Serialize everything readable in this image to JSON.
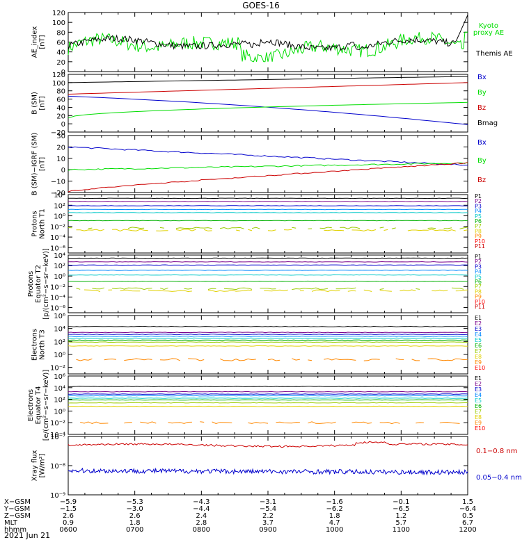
{
  "title": "GOES-16",
  "date": "2021 Jun 21",
  "colors": {
    "black": "#000000",
    "green": "#00dd00",
    "blue": "#0000cc",
    "red": "#cc0000",
    "p_colors": [
      "#000000",
      "#7a008a",
      "#0000cc",
      "#0088ff",
      "#00c8c8",
      "#00b000",
      "#9acc00",
      "#e0d000",
      "#ff8800",
      "#ff0000",
      "#cc0000"
    ],
    "e_colors": [
      "#000000",
      "#7a008a",
      "#0000cc",
      "#0088ff",
      "#00c8c8",
      "#00b000",
      "#9acc00",
      "#e0d000",
      "#ff8800",
      "#ff0000",
      "#cc0000"
    ]
  },
  "chart_data": [
    {
      "type": "line",
      "panel": "ae",
      "ylabel": "AE_index\n[nT]",
      "ylim": [
        0,
        120
      ],
      "yticks": [
        "0",
        "20",
        "40",
        "60",
        "80",
        "100",
        "120"
      ],
      "x": [
        "0600",
        "0700",
        "0800",
        "0900",
        "1000",
        "1100",
        "1200"
      ],
      "series": [
        {
          "name": "Kyoto\nproxy AE",
          "color": "#00dd00",
          "values_hint": "fluctuating 20-75"
        },
        {
          "name": "Themis AE",
          "color": "#000000",
          "values_hint": "fluctuating 40-75, rise to 110 at end"
        }
      ]
    },
    {
      "type": "line",
      "panel": "bsm",
      "ylabel": "B (SM)\n[nT]",
      "ylim": [
        -20,
        120
      ],
      "yticks": [
        "−20",
        "0",
        "20",
        "40",
        "60",
        "80",
        "100",
        "120"
      ],
      "series": [
        {
          "name": "Bx",
          "color": "#0000cc",
          "start": 67,
          "end": -2
        },
        {
          "name": "By",
          "color": "#00dd00",
          "start": 14,
          "end": 52
        },
        {
          "name": "Bz",
          "color": "#cc0000",
          "start": 72,
          "end": 100
        },
        {
          "name": "Bmag",
          "color": "#000000",
          "start": 100,
          "end": 115
        }
      ]
    },
    {
      "type": "line",
      "panel": "bigrf",
      "ylabel": "B (SM)−IGRF (SM)\n[nT]",
      "ylim": [
        -20,
        30
      ],
      "yticks": [
        "−20",
        "−10",
        "0",
        "10",
        "20",
        "30"
      ],
      "series": [
        {
          "name": "Bx",
          "color": "#0000cc",
          "start": 20,
          "end": 4
        },
        {
          "name": "By",
          "color": "#00dd00",
          "start": 0,
          "end": 6
        },
        {
          "name": "Bz",
          "color": "#cc0000",
          "start": -19,
          "end": 6
        }
      ]
    },
    {
      "type": "line",
      "panel": "protons_t1",
      "ylabel": "Protons\nNorth T1",
      "ylog": true,
      "ylim": [
        1e-07,
        10000.0
      ],
      "yticks": [
        "10⁻⁶",
        "10⁻⁴",
        "10⁻²",
        "10⁰",
        "10²",
        "10⁴"
      ],
      "legend": [
        "P1",
        "P2",
        "P3",
        "P4",
        "P5",
        "P6",
        "P7",
        "P8",
        "P9",
        "P10",
        "P11"
      ]
    },
    {
      "type": "line",
      "panel": "protons_t2",
      "ylabel": "Protons\nEquator T2\n[p/(cm²−s−sr−keV)]",
      "ylog": true,
      "ylim": [
        1e-07,
        10000.0
      ],
      "yticks": [
        "10⁻⁶",
        "10⁻⁴",
        "10⁻²",
        "10⁰",
        "10²",
        "10⁴"
      ],
      "legend": [
        "P1",
        "P2",
        "P3",
        "P4",
        "P5",
        "P6",
        "P7",
        "P8",
        "P9",
        "P10",
        "P11"
      ]
    },
    {
      "type": "line",
      "panel": "electrons_t3",
      "ylabel": "Electrons\nNorth T3",
      "ylog": true,
      "ylim": [
        0.001,
        1000000.0
      ],
      "yticks": [
        "10⁻²",
        "10⁰",
        "10²",
        "10⁴",
        "10⁶"
      ],
      "legend": [
        "E1",
        "E2",
        "E3",
        "E4",
        "E5",
        "E6",
        "E7",
        "E8",
        "E9",
        "E10"
      ]
    },
    {
      "type": "line",
      "panel": "electrons_t4",
      "ylabel": "Electrons\nEquator T4\n[e/(cm²−s−sr−keV)]",
      "ylog": true,
      "ylim": [
        0.0001,
        1000000.0
      ],
      "yticks": [
        "10⁻⁴",
        "10⁻²",
        "10⁰",
        "10²",
        "10⁴",
        "10⁶"
      ],
      "legend": [
        "E1",
        "E2",
        "E3",
        "E4",
        "E5",
        "E6",
        "E7",
        "E8",
        "E9",
        "E10"
      ]
    },
    {
      "type": "line",
      "panel": "xray",
      "ylabel": "Xray flux\n[W/m²]",
      "ylog": true,
      "ylim": [
        1e-09,
        1e-07
      ],
      "yticks": [
        "10⁻⁹",
        "10⁻⁸",
        "10⁻⁷"
      ],
      "series": [
        {
          "name": "0.1−0.8 nm",
          "color": "#cc0000"
        },
        {
          "name": "0.05−0.4 nm",
          "color": "#0000cc"
        }
      ]
    }
  ],
  "ephemeris": {
    "labels": [
      "X−GSM",
      "Y−GSM",
      "Z−GSM",
      "MLT",
      "hhmm"
    ],
    "columns": [
      [
        "−5.9",
        "−1.5",
        "2.6",
        "0.9",
        "0600"
      ],
      [
        "−5.3",
        "−3.0",
        "2.6",
        "1.8",
        "0700"
      ],
      [
        "−4.3",
        "−4.4",
        "2.4",
        "2.8",
        "0800"
      ],
      [
        "−3.1",
        "−5.4",
        "2.2",
        "3.7",
        "0900"
      ],
      [
        "−1.6",
        "−6.2",
        "1.8",
        "4.7",
        "1000"
      ],
      [
        "−0.1",
        "−6.5",
        "1.2",
        "5.7",
        "1100"
      ],
      [
        "1.5",
        "−6.4",
        "0.5",
        "6.7",
        "1200"
      ]
    ]
  }
}
